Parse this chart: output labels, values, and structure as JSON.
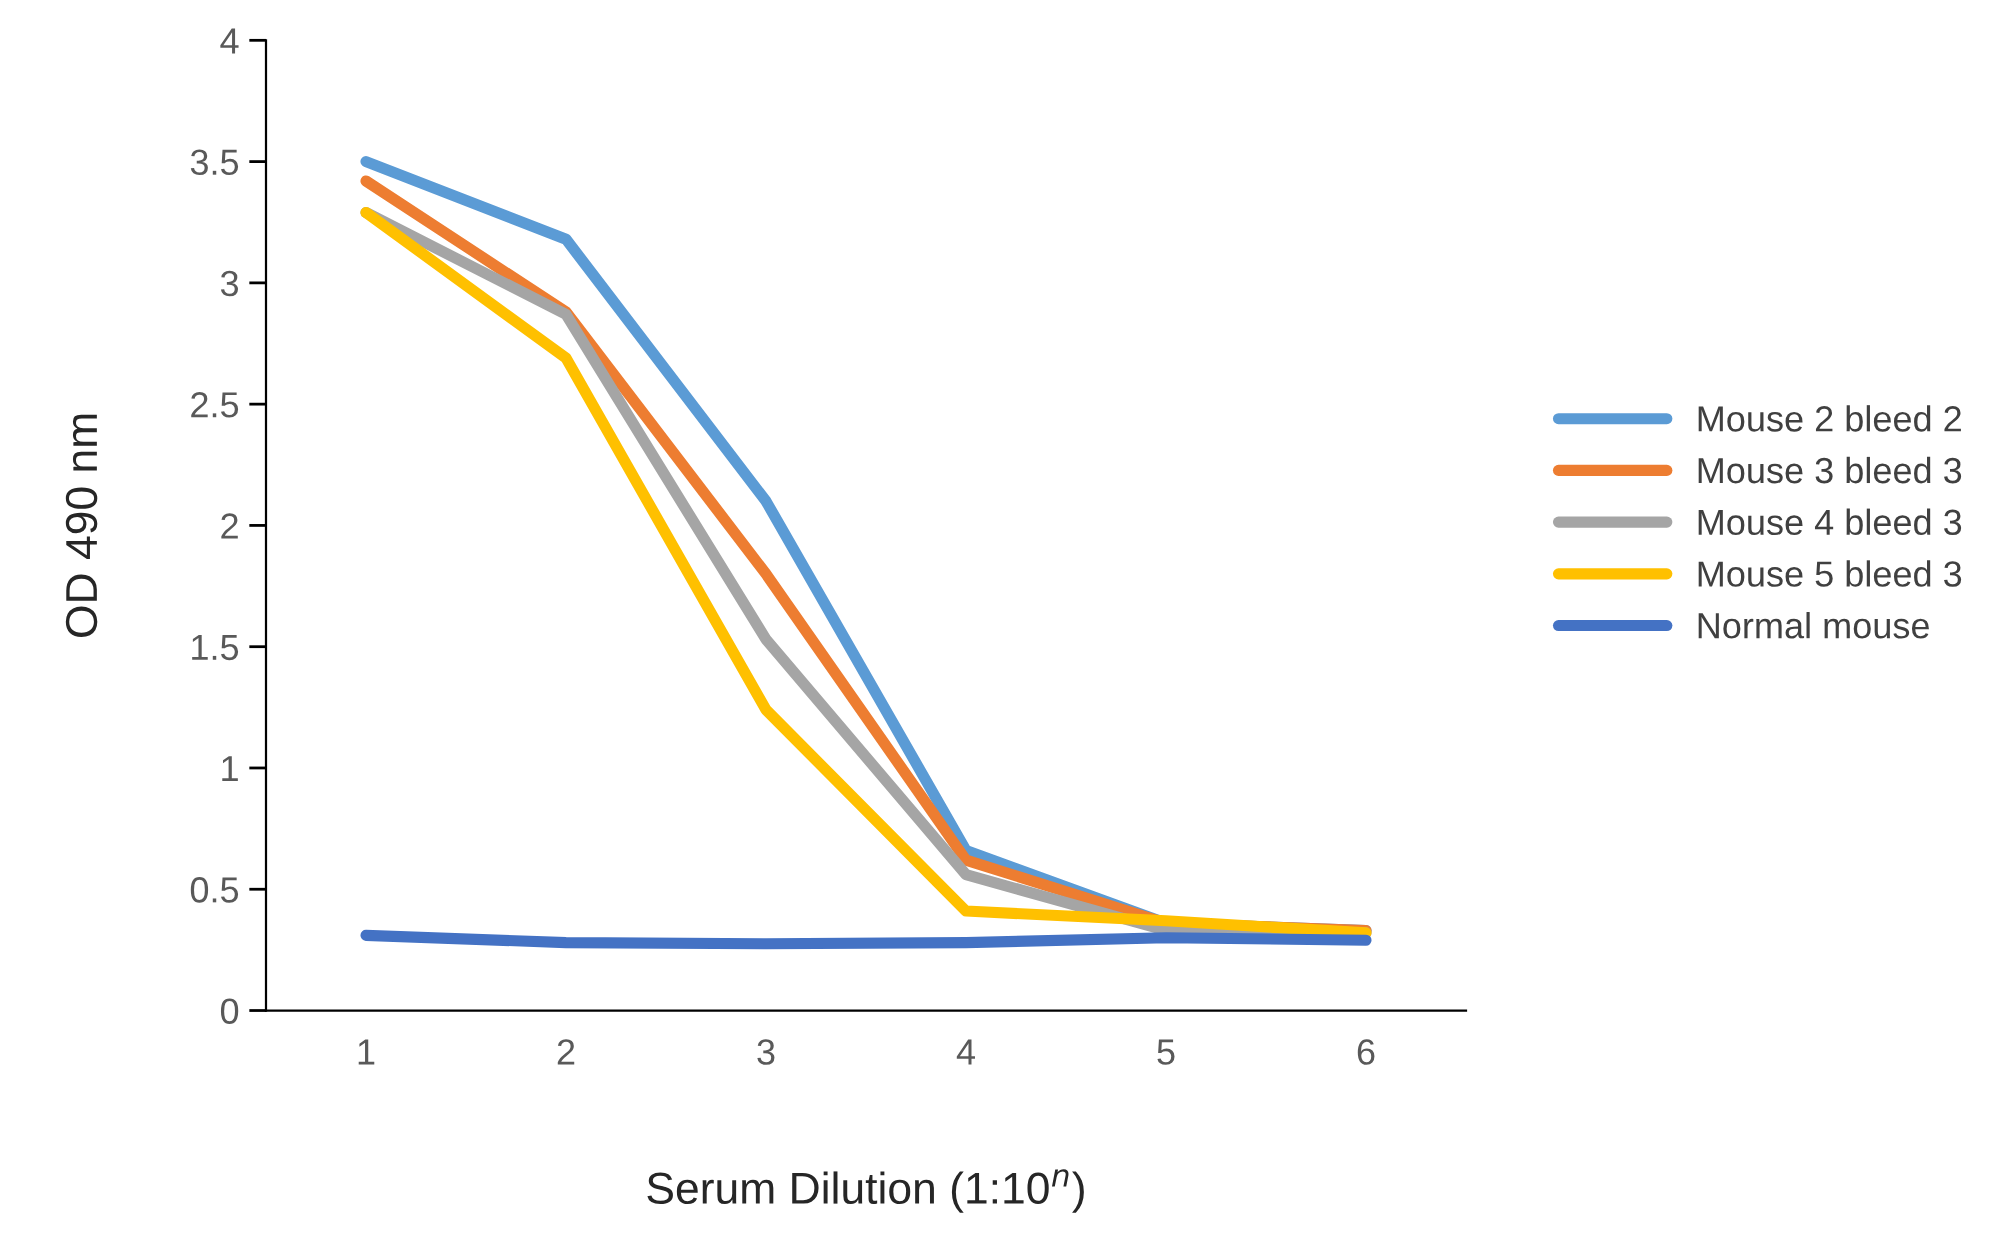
{
  "chart_data": {
    "type": "line",
    "xlabel": "Serum Dilution (1:10$^{n}$)",
    "ylabel": "OD 490 nm",
    "categories": [
      "1",
      "2",
      "3",
      "4",
      "5",
      "6"
    ],
    "series": [
      {
        "name": "Mouse 2 bleed 2",
        "color": "#5b9bd5",
        "values": [
          3.5,
          3.18,
          2.1,
          0.66,
          0.36,
          0.33
        ]
      },
      {
        "name": "Mouse 3 bleed 3",
        "color": "#ed7d31",
        "values": [
          3.42,
          2.88,
          1.8,
          0.62,
          0.36,
          0.33
        ]
      },
      {
        "name": "Mouse 4 bleed 3",
        "color": "#a5a5a5",
        "values": [
          3.29,
          2.87,
          1.53,
          0.56,
          0.33,
          0.32
        ]
      },
      {
        "name": "Mouse 5 bleed 3",
        "color": "#ffc000",
        "values": [
          3.29,
          2.69,
          1.24,
          0.41,
          0.37,
          0.32
        ]
      },
      {
        "name": "Normal mouse",
        "color": "#4472c4",
        "values": [
          0.31,
          0.28,
          0.275,
          0.28,
          0.3,
          0.29
        ]
      }
    ],
    "ylim": [
      0,
      4
    ],
    "yticks": [
      0,
      0.5,
      1,
      1.5,
      2,
      2.5,
      3,
      3.5,
      4
    ],
    "grid": false,
    "legend": "right",
    "marker": "none",
    "line_style": "solid"
  }
}
